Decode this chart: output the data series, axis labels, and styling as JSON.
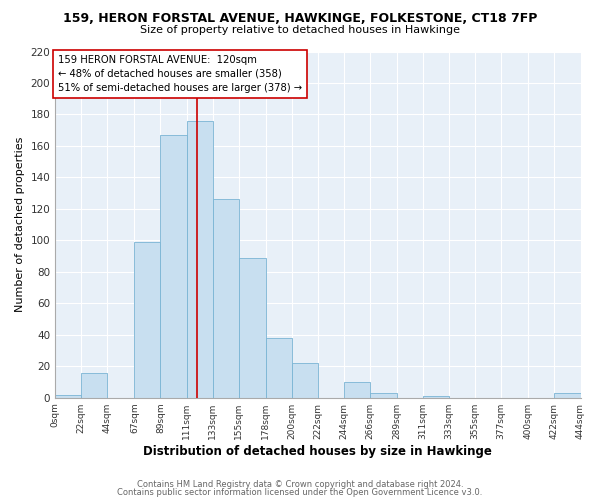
{
  "title": "159, HERON FORSTAL AVENUE, HAWKINGE, FOLKESTONE, CT18 7FP",
  "subtitle": "Size of property relative to detached houses in Hawkinge",
  "xlabel": "Distribution of detached houses by size in Hawkinge",
  "ylabel": "Number of detached properties",
  "bar_left_edges": [
    0,
    22,
    44,
    67,
    89,
    111,
    133,
    155,
    178,
    200,
    222,
    244,
    266,
    289,
    311,
    333,
    355,
    377,
    400,
    422
  ],
  "bar_heights": [
    2,
    16,
    0,
    99,
    167,
    176,
    126,
    89,
    38,
    22,
    0,
    10,
    3,
    0,
    1,
    0,
    0,
    0,
    0,
    3
  ],
  "bar_widths": [
    22,
    22,
    23,
    22,
    22,
    22,
    22,
    23,
    22,
    22,
    22,
    22,
    23,
    22,
    22,
    22,
    22,
    23,
    22,
    22
  ],
  "bar_color": "#c8dff0",
  "bar_edgecolor": "#7ab4d4",
  "tick_labels": [
    "0sqm",
    "22sqm",
    "44sqm",
    "67sqm",
    "89sqm",
    "111sqm",
    "133sqm",
    "155sqm",
    "178sqm",
    "200sqm",
    "222sqm",
    "244sqm",
    "266sqm",
    "289sqm",
    "311sqm",
    "333sqm",
    "355sqm",
    "377sqm",
    "400sqm",
    "422sqm",
    "444sqm"
  ],
  "tick_positions": [
    0,
    22,
    44,
    67,
    89,
    111,
    133,
    155,
    178,
    200,
    222,
    244,
    266,
    289,
    311,
    333,
    355,
    377,
    400,
    422,
    444
  ],
  "ylim": [
    0,
    220
  ],
  "xlim": [
    0,
    444
  ],
  "yticks": [
    0,
    20,
    40,
    60,
    80,
    100,
    120,
    140,
    160,
    180,
    200,
    220
  ],
  "property_line_x": 120,
  "property_line_color": "#cc0000",
  "annotation_line1": "159 HERON FORSTAL AVENUE:  120sqm",
  "annotation_line2": "← 48% of detached houses are smaller (358)",
  "annotation_line3": "51% of semi-detached houses are larger (378) →",
  "footer1": "Contains HM Land Registry data © Crown copyright and database right 2024.",
  "footer2": "Contains public sector information licensed under the Open Government Licence v3.0.",
  "background_color": "#ffffff",
  "plot_background_color": "#e8f0f8",
  "grid_color": "#ffffff"
}
